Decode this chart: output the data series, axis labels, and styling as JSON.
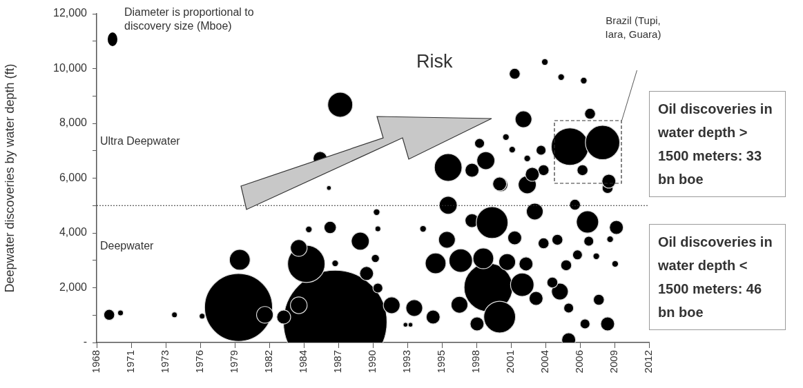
{
  "chart_data": {
    "type": "bubble",
    "ylabel": "Deepwater discoveries by water depth (ft)",
    "xlim": [
      1968,
      2012
    ],
    "xticks": [
      1968,
      {
        "value": 1970.75,
        "label": "1971"
      },
      {
        "value": 1973.5,
        "label": "1973"
      },
      {
        "value": 1976.25,
        "label": "1976"
      },
      1979,
      {
        "value": 1981.75,
        "label": "1982"
      },
      {
        "value": 1984.5,
        "label": "1984"
      },
      {
        "value": 1987.25,
        "label": "1987"
      },
      1990,
      {
        "value": 1992.75,
        "label": "1993"
      },
      {
        "value": 1995.5,
        "label": "1995"
      },
      {
        "value": 1998.25,
        "label": "1998"
      },
      2001,
      {
        "value": 2003.75,
        "label": "2004"
      },
      {
        "value": 2006.5,
        "label": "2006"
      },
      {
        "value": 2009.25,
        "label": "2009"
      },
      2012
    ],
    "ylim": [
      0,
      12000
    ],
    "yticks": [
      {
        "value": 0,
        "label": "-"
      },
      {
        "value": 1000,
        "label": null
      },
      {
        "value": 2000,
        "label": "2,000"
      },
      {
        "value": 3000,
        "label": null
      },
      {
        "value": 4000,
        "label": "4,000"
      },
      {
        "value": 5000,
        "label": null
      },
      {
        "value": 6000,
        "label": "6,000"
      },
      {
        "value": 7000,
        "label": null
      },
      {
        "value": 8000,
        "label": "8,000"
      },
      {
        "value": 9000,
        "label": null
      },
      {
        "value": 10000,
        "label": "10,000"
      },
      {
        "value": 11000,
        "label": null
      },
      {
        "value": 12000,
        "label": "12,000"
      }
    ],
    "ref_lines": [
      {
        "axis": "y",
        "value": 5000,
        "line_style": "dotted",
        "color": "#333333"
      }
    ],
    "annotations": [
      "Diameter is proportional to discovery size (Mboe)",
      "Risk",
      "Ultra Deepwater",
      "Deepwater",
      "Brazil (Tupi, Iara, Guara)",
      "Oil discoveries in water depth > 1500 meters: 33 bn boe",
      "Oil discoveries in water depth < 1500 meters: 46 bn boe"
    ],
    "series": [
      {
        "color": "#000000",
        "x": [
          1987.0,
          1979.3,
          1987.4,
          1985.8,
          1986.5,
          1969.0,
          1969.9,
          1974.2,
          1976.4,
          1979.4,
          1981.4,
          1982.9,
          1984.1,
          1984.7,
          1984.1,
          1984.9,
          1986.6,
          1987.0,
          1989.0,
          1990.2,
          1989.5,
          1990.3,
          1990.4,
          1990.4,
          1991.5,
          1993.3,
          1992.6,
          1993.0,
          1994.0,
          1995.0,
          1994.8,
          1995.9,
          1996.0,
          1997.0,
          1996.9,
          1997.9,
          1999.2,
          1999.5,
          2000.1,
          2000.2,
          2001.9,
          2003.0,
          2002.9,
          2002.2,
          2003.6,
          2002.3,
          2004.7,
          2004.9,
          2005.6,
          2006.1,
          2007.1,
          2007.2,
          2006.3,
          2007.8,
          2008.0,
          2006.9,
          2008.7,
          2009.4,
          2009.3,
          2008.9,
          2005.6,
          2008.7,
          2001.3,
          2003.7,
          2005.0,
          2006.8,
          2002.0,
          2007.3,
          2005.7,
          2008.3,
          2006.7,
          2008.8,
          1996.0,
          1999.0,
          1997.9,
          1998.5,
          2000.6,
          2001.1,
          2003.4,
          2002.3,
          2003.6,
          2002.7,
          2000.1,
          1998.8,
          2000.7,
          2001.3,
          1998.3,
          2004.3,
          2005.4
        ],
        "values": [
          750,
          1280,
          8680,
          6720,
          5640,
          1010,
          1080,
          1010,
          960,
          3020,
          1010,
          930,
          1360,
          2870,
          3450,
          4130,
          4200,
          2890,
          3700,
          3070,
          2520,
          4760,
          4150,
          1990,
          1360,
          1260,
          650,
          650,
          4150,
          2890,
          930,
          3750,
          5010,
          2990,
          1380,
          4450,
          2010,
          4380,
          930,
          5760,
          2110,
          1610,
          4780,
          2870,
          3620,
          5760,
          3750,
          1860,
          1260,
          5030,
          4400,
          3700,
          3200,
          3150,
          1560,
          680,
          680,
          4200,
          2870,
          3770,
          100,
          5640,
          9810,
          10240,
          9690,
          9560,
          8150,
          8350,
          7150,
          7300,
          6290,
          5890,
          6390,
          6640,
          6290,
          7270,
          7500,
          7040,
          7020,
          6720,
          6290,
          6140,
          5790,
          3070,
          2940,
          3820,
          680,
          2190,
          2820
        ],
        "sizes": [
          1,
          0.43,
          0.058,
          0.018,
          0.002,
          0.011,
          0.003,
          0.003,
          0.003,
          0.04,
          0.026,
          0.018,
          0.026,
          0.13,
          0.026,
          0.004,
          0.014,
          0.004,
          0.03,
          0.006,
          0.018,
          0.004,
          0.003,
          0.009,
          0.026,
          0.026,
          0.002,
          0.002,
          0.004,
          0.04,
          0.018,
          0.026,
          0.03,
          0.051,
          0.026,
          0.018,
          0.22,
          0.094,
          0.094,
          0.018,
          0.051,
          0.018,
          0.026,
          0.018,
          0.011,
          0.03,
          0.011,
          0.026,
          0.009,
          0.011,
          0.046,
          0.009,
          0.009,
          0.004,
          0.011,
          0.009,
          0.018,
          0.018,
          0.004,
          0.004,
          0.018,
          0.011,
          0.011,
          0.004,
          0.004,
          0.004,
          0.026,
          0.011,
          0.13,
          0.11,
          0.011,
          0.018,
          0.071,
          0.03,
          0.018,
          0.009,
          0.004,
          0.004,
          0.009,
          0.004,
          0.011,
          0.018,
          0.018,
          0.04,
          0.026,
          0.018,
          0.018,
          0.011,
          0.011
        ]
      }
    ]
  }
}
